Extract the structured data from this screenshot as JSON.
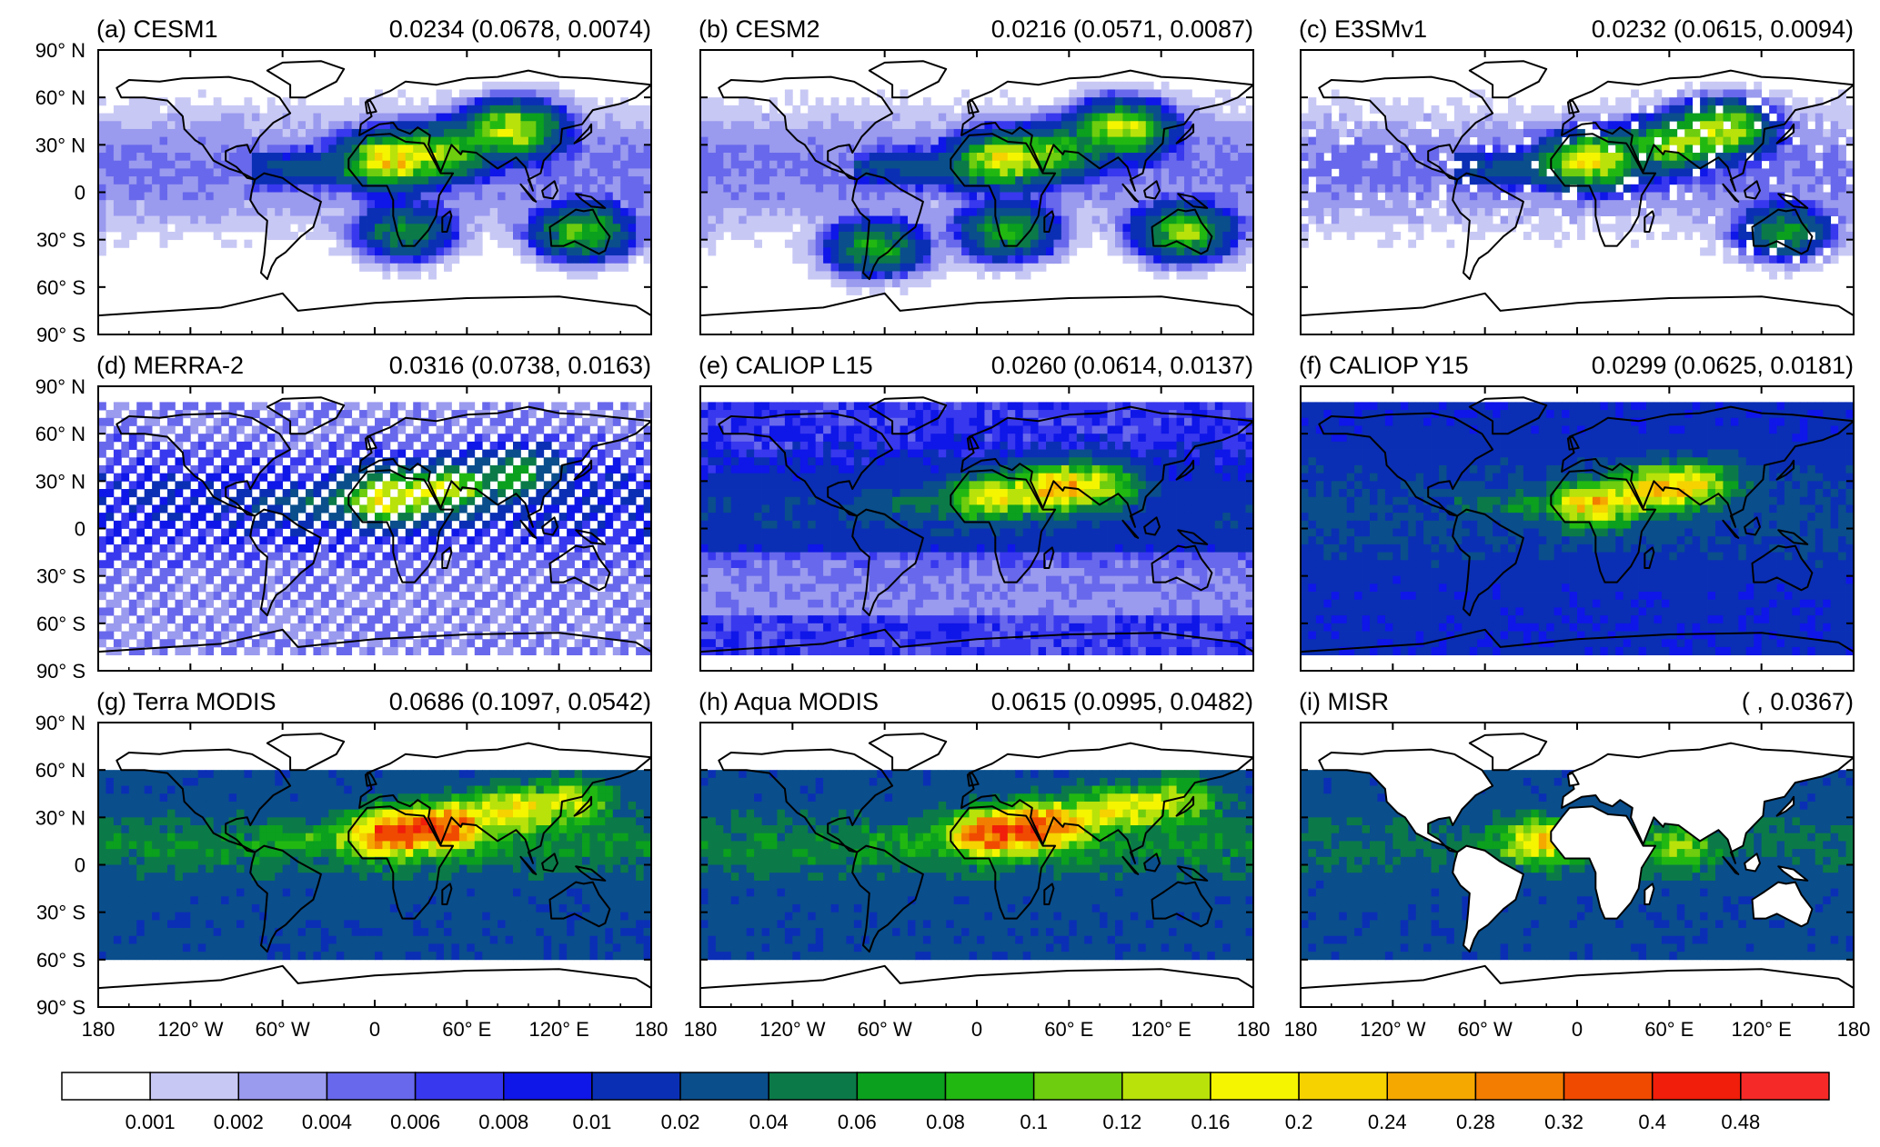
{
  "chart_data": {
    "type": "heatmap",
    "description_free": true,
    "panels": [
      {
        "label": "(a) CESM1",
        "stats": "0.0234 (0.0678, 0.0074)",
        "lat_coverage": [
          -90,
          90
        ],
        "style": "model",
        "hotspots": [
          {
            "lon": 10,
            "lat": 20,
            "value": 0.2
          },
          {
            "lon": 45,
            "lat": 25,
            "value": 0.12
          },
          {
            "lon": 90,
            "lat": 40,
            "value": 0.16
          },
          {
            "lon": 135,
            "lat": -25,
            "value": 0.1
          },
          {
            "lon": 20,
            "lat": -25,
            "value": 0.06
          }
        ]
      },
      {
        "label": "(b) CESM2",
        "stats": "0.0216 (0.0571, 0.0087)",
        "lat_coverage": [
          -90,
          90
        ],
        "style": "model",
        "hotspots": [
          {
            "lon": 15,
            "lat": 20,
            "value": 0.16
          },
          {
            "lon": 50,
            "lat": 25,
            "value": 0.1
          },
          {
            "lon": 95,
            "lat": 40,
            "value": 0.16
          },
          {
            "lon": 135,
            "lat": -25,
            "value": 0.12
          },
          {
            "lon": -65,
            "lat": -35,
            "value": 0.08
          },
          {
            "lon": 20,
            "lat": -25,
            "value": 0.08
          }
        ]
      },
      {
        "label": "(c) E3SMv1",
        "stats": "0.0232 (0.0615, 0.0094)",
        "lat_coverage": [
          -90,
          90
        ],
        "style": "model-sparse",
        "hotspots": [
          {
            "lon": 10,
            "lat": 20,
            "value": 0.2
          },
          {
            "lon": 60,
            "lat": 30,
            "value": 0.12
          },
          {
            "lon": 95,
            "lat": 40,
            "value": 0.16
          },
          {
            "lon": 135,
            "lat": -25,
            "value": 0.06
          }
        ]
      },
      {
        "label": "(d) MERRA-2",
        "stats": "0.0316 (0.0738, 0.0163)",
        "lat_coverage": [
          -80,
          80
        ],
        "style": "reanalysis",
        "hotspots": [
          {
            "lon": 10,
            "lat": 20,
            "value": 0.2
          },
          {
            "lon": 50,
            "lat": 25,
            "value": 0.12
          },
          {
            "lon": 95,
            "lat": 35,
            "value": 0.06
          }
        ]
      },
      {
        "label": "(e) CALIOP L15",
        "stats": "0.0260 (0.0614, 0.0137)",
        "lat_coverage": [
          -82,
          82
        ],
        "style": "satellite",
        "hotspots": [
          {
            "lon": 10,
            "lat": 20,
            "value": 0.16
          },
          {
            "lon": 50,
            "lat": 25,
            "value": 0.2
          },
          {
            "lon": 80,
            "lat": 28,
            "value": 0.12
          }
        ]
      },
      {
        "label": "(f) CALIOP Y15",
        "stats": "0.0299 (0.0625, 0.0181)",
        "lat_coverage": [
          -82,
          82
        ],
        "style": "satellite-dense",
        "hotspots": [
          {
            "lon": 10,
            "lat": 15,
            "value": 0.2
          },
          {
            "lon": 50,
            "lat": 25,
            "value": 0.2
          },
          {
            "lon": 80,
            "lat": 28,
            "value": 0.12
          }
        ]
      },
      {
        "label": "(g) Terra MODIS",
        "stats": "0.0686 (0.1097, 0.0542)",
        "lat_coverage": [
          -60,
          60
        ],
        "style": "modis",
        "hotspots": [
          {
            "lon": 10,
            "lat": 20,
            "value": 0.32
          },
          {
            "lon": 45,
            "lat": 25,
            "value": 0.32
          },
          {
            "lon": 90,
            "lat": 35,
            "value": 0.16
          },
          {
            "lon": 130,
            "lat": 40,
            "value": 0.12
          }
        ]
      },
      {
        "label": "(h) Aqua MODIS",
        "stats": "0.0615 (0.0995, 0.0482)",
        "lat_coverage": [
          -60,
          60
        ],
        "style": "modis",
        "hotspots": [
          {
            "lon": 10,
            "lat": 20,
            "value": 0.32
          },
          {
            "lon": 45,
            "lat": 25,
            "value": 0.32
          },
          {
            "lon": 90,
            "lat": 35,
            "value": 0.16
          },
          {
            "lon": 130,
            "lat": 40,
            "value": 0.12
          }
        ]
      },
      {
        "label": "(i) MISR",
        "stats": "(       , 0.0367)",
        "lat_coverage": [
          -60,
          60
        ],
        "style": "misr",
        "hotspots": [
          {
            "lon": -25,
            "lat": 15,
            "value": 0.16
          },
          {
            "lon": 65,
            "lat": 10,
            "value": 0.08
          }
        ]
      }
    ],
    "y_tick_labels": [
      "90° N",
      "60° N",
      "30° N",
      "0",
      "30° S",
      "60° S",
      "90° S"
    ],
    "y_tick_values": [
      90,
      60,
      30,
      0,
      -30,
      -60,
      -90
    ],
    "x_tick_labels": [
      "180",
      "120° W",
      "60° W",
      "0",
      "60° E",
      "120° E",
      "180"
    ],
    "x_tick_values": [
      -180,
      -120,
      -60,
      0,
      60,
      120,
      180
    ],
    "xlim": [
      -180,
      180
    ],
    "ylim": [
      -90,
      90
    ],
    "colorbar": {
      "position": "bottom",
      "labels": [
        "0.001",
        "0.002",
        "0.004",
        "0.006",
        "0.008",
        "0.01",
        "0.02",
        "0.04",
        "0.06",
        "0.08",
        "0.1",
        "0.12",
        "0.16",
        "0.2",
        "0.24",
        "0.28",
        "0.32",
        "0.4",
        "0.48"
      ],
      "levels": [
        0.001,
        0.002,
        0.004,
        0.006,
        0.008,
        0.01,
        0.02,
        0.04,
        0.06,
        0.08,
        0.1,
        0.12,
        0.16,
        0.2,
        0.24,
        0.28,
        0.32,
        0.4,
        0.48
      ],
      "colors": [
        "#ffffff",
        "#c8c8f5",
        "#9a9aef",
        "#6868ec",
        "#3838ee",
        "#0f16e8",
        "#0a2fb4",
        "#0a4e8c",
        "#0b7a48",
        "#0ba01e",
        "#22b812",
        "#6dcd0e",
        "#b8e20a",
        "#f5f500",
        "#f5d200",
        "#f5a800",
        "#f27d00",
        "#f04a00",
        "#f01e0a",
        "#f52a28"
      ]
    }
  }
}
